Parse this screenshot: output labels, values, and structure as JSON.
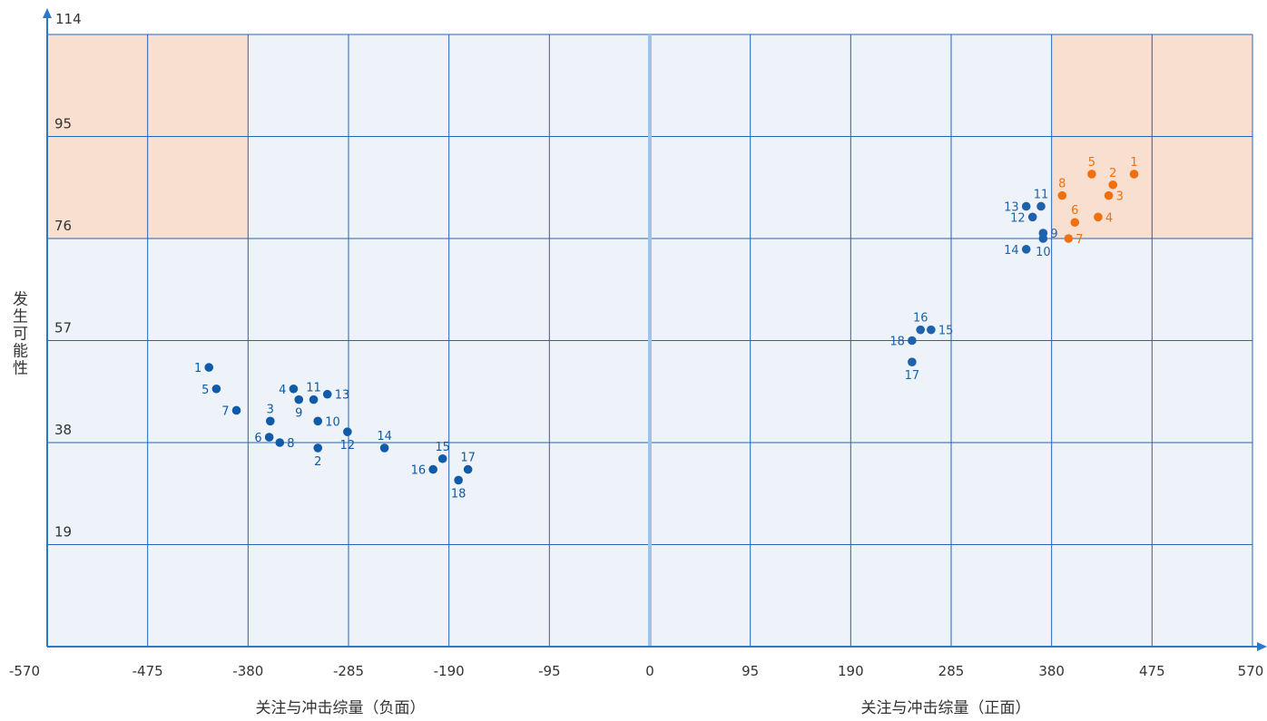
{
  "chart_data": {
    "type": "scatter",
    "xlabel_negative": "关注与冲击综量（负面）",
    "xlabel_positive": "关注与冲击综量（正面）",
    "ylabel": "发生可能性",
    "xlim": [
      -570,
      570
    ],
    "ylim": [
      0,
      114
    ],
    "x_ticks": [
      "-570",
      "-475",
      "-380",
      "-285",
      "-190",
      "-95",
      "0",
      "95",
      "190",
      "285",
      "380",
      "475",
      "570"
    ],
    "y_ticks": [
      "114",
      "95",
      "76",
      "57",
      "38",
      "19"
    ],
    "grid": true,
    "highlight_zones": [
      {
        "x": [
          -570,
          -380
        ],
        "y": [
          76,
          114
        ]
      },
      {
        "x": [
          380,
          570
        ],
        "y": [
          76,
          114
        ]
      }
    ],
    "colors": {
      "background": "#edf3f8",
      "grid": "#2563b8",
      "zone": "#f9dfcf",
      "axis": "#2a78c9",
      "negative": "#0f5ba8",
      "positive_high": "#f0700f",
      "positive_mid": "#1e62ad"
    },
    "series": [
      {
        "group": "negative",
        "color": "#0f5ba8",
        "points": [
          {
            "label": "1",
            "x": -417,
            "y": 52,
            "label_pos": "left"
          },
          {
            "label": "2",
            "x": -314,
            "y": 37,
            "label_pos": "below"
          },
          {
            "label": "3",
            "x": -359,
            "y": 42,
            "label_pos": "above"
          },
          {
            "label": "4",
            "x": -337,
            "y": 48,
            "label_pos": "left"
          },
          {
            "label": "5",
            "x": -410,
            "y": 48,
            "label_pos": "left"
          },
          {
            "label": "6",
            "x": -360,
            "y": 39,
            "label_pos": "left"
          },
          {
            "label": "7",
            "x": -391,
            "y": 44,
            "label_pos": "left"
          },
          {
            "label": "8",
            "x": -350,
            "y": 38,
            "label_pos": "right"
          },
          {
            "label": "9",
            "x": -332,
            "y": 46,
            "label_pos": "below"
          },
          {
            "label": "10",
            "x": -314,
            "y": 42,
            "label_pos": "right"
          },
          {
            "label": "11",
            "x": -318,
            "y": 46,
            "label_pos": "above"
          },
          {
            "label": "12",
            "x": -286,
            "y": 40,
            "label_pos": "below"
          },
          {
            "label": "13",
            "x": -305,
            "y": 47,
            "label_pos": "right"
          },
          {
            "label": "14",
            "x": -251,
            "y": 37,
            "label_pos": "above"
          },
          {
            "label": "15",
            "x": -196,
            "y": 35,
            "label_pos": "above"
          },
          {
            "label": "16",
            "x": -205,
            "y": 33,
            "label_pos": "left"
          },
          {
            "label": "17",
            "x": -172,
            "y": 33,
            "label_pos": "above"
          },
          {
            "label": "18",
            "x": -181,
            "y": 31,
            "label_pos": "below"
          }
        ]
      },
      {
        "group": "positive_high",
        "color": "#f0700f",
        "points": [
          {
            "label": "1",
            "x": 458,
            "y": 88,
            "label_pos": "above"
          },
          {
            "label": "2",
            "x": 438,
            "y": 86,
            "label_pos": "above"
          },
          {
            "label": "3",
            "x": 434,
            "y": 84,
            "label_pos": "right"
          },
          {
            "label": "4",
            "x": 424,
            "y": 80,
            "label_pos": "right"
          },
          {
            "label": "5",
            "x": 418,
            "y": 88,
            "label_pos": "above"
          },
          {
            "label": "6",
            "x": 402,
            "y": 79,
            "label_pos": "above"
          },
          {
            "label": "7",
            "x": 396,
            "y": 76,
            "label_pos": "right"
          },
          {
            "label": "8",
            "x": 390,
            "y": 84,
            "label_pos": "above"
          }
        ]
      },
      {
        "group": "positive_mid",
        "color": "#1e62ad",
        "points": [
          {
            "label": "9",
            "x": 372,
            "y": 77,
            "label_pos": "right"
          },
          {
            "label": "10",
            "x": 372,
            "y": 76,
            "label_pos": "below"
          },
          {
            "label": "11",
            "x": 370,
            "y": 82,
            "label_pos": "above"
          },
          {
            "label": "12",
            "x": 362,
            "y": 80,
            "label_pos": "left"
          },
          {
            "label": "13",
            "x": 356,
            "y": 82,
            "label_pos": "left"
          },
          {
            "label": "14",
            "x": 356,
            "y": 74,
            "label_pos": "left"
          },
          {
            "label": "15",
            "x": 266,
            "y": 59,
            "label_pos": "right"
          },
          {
            "label": "16",
            "x": 256,
            "y": 59,
            "label_pos": "above"
          },
          {
            "label": "17",
            "x": 248,
            "y": 53,
            "label_pos": "below"
          },
          {
            "label": "18",
            "x": 248,
            "y": 57,
            "label_pos": "left"
          }
        ]
      }
    ]
  }
}
